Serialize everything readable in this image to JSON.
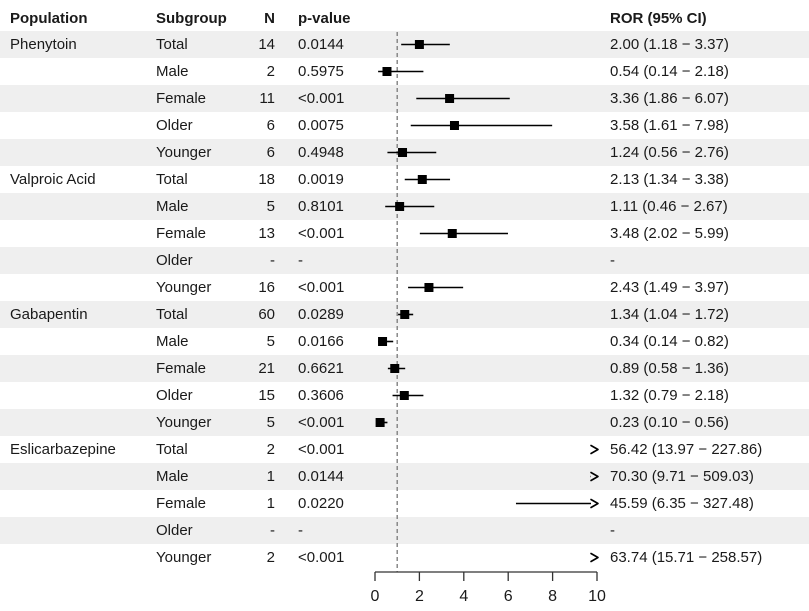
{
  "table": {
    "headers": {
      "population": "Population",
      "subgroup": "Subgroup",
      "n": "N",
      "p_value": "p-value",
      "ror": "ROR (95% CI)"
    }
  },
  "chart_data": {
    "type": "forest",
    "xlim": [
      0,
      10
    ],
    "x_ticks": [
      "0",
      "2",
      "4",
      "6",
      "8",
      "10"
    ],
    "reference_line": 1,
    "legend": "squares are ROR point estimates, horizontal lines are 95% CI, arrows indicate CI extends beyond axis",
    "colors": {
      "marker": "#000000",
      "ci_line": "#000000",
      "reference_line": "#808080",
      "stripe": "#efefef",
      "axis": "#333333"
    },
    "rows": [
      {
        "population": "Phenytoin",
        "subgroup": "Total",
        "n": "14",
        "p_value": "0.0144",
        "ror": 2.0,
        "ci_low": 1.18,
        "ci_high": 3.37,
        "ror_label": "2.00 (1.18 − 3.37)"
      },
      {
        "population": "",
        "subgroup": "Male",
        "n": "2",
        "p_value": "0.5975",
        "ror": 0.54,
        "ci_low": 0.14,
        "ci_high": 2.18,
        "ror_label": "0.54 (0.14 − 2.18)"
      },
      {
        "population": "",
        "subgroup": "Female",
        "n": "11",
        "p_value": "<0.001",
        "ror": 3.36,
        "ci_low": 1.86,
        "ci_high": 6.07,
        "ror_label": "3.36 (1.86 − 6.07)"
      },
      {
        "population": "",
        "subgroup": "Older",
        "n": "6",
        "p_value": "0.0075",
        "ror": 3.58,
        "ci_low": 1.61,
        "ci_high": 7.98,
        "ror_label": "3.58 (1.61 − 7.98)"
      },
      {
        "population": "",
        "subgroup": "Younger",
        "n": "6",
        "p_value": "0.4948",
        "ror": 1.24,
        "ci_low": 0.56,
        "ci_high": 2.76,
        "ror_label": "1.24 (0.56 − 2.76)"
      },
      {
        "population": "Valproic Acid",
        "subgroup": "Total",
        "n": "18",
        "p_value": "0.0019",
        "ror": 2.13,
        "ci_low": 1.34,
        "ci_high": 3.38,
        "ror_label": "2.13 (1.34 − 3.38)"
      },
      {
        "population": "",
        "subgroup": "Male",
        "n": "5",
        "p_value": "0.8101",
        "ror": 1.11,
        "ci_low": 0.46,
        "ci_high": 2.67,
        "ror_label": "1.11 (0.46 − 2.67)"
      },
      {
        "population": "",
        "subgroup": "Female",
        "n": "13",
        "p_value": "<0.001",
        "ror": 3.48,
        "ci_low": 2.02,
        "ci_high": 5.99,
        "ror_label": "3.48 (2.02 − 5.99)"
      },
      {
        "population": "",
        "subgroup": "Older",
        "n": "-",
        "p_value": "-",
        "ror": null,
        "ci_low": null,
        "ci_high": null,
        "ror_label": "-"
      },
      {
        "population": "",
        "subgroup": "Younger",
        "n": "16",
        "p_value": "<0.001",
        "ror": 2.43,
        "ci_low": 1.49,
        "ci_high": 3.97,
        "ror_label": "2.43 (1.49 − 3.97)"
      },
      {
        "population": "Gabapentin",
        "subgroup": "Total",
        "n": "60",
        "p_value": "0.0289",
        "ror": 1.34,
        "ci_low": 1.04,
        "ci_high": 1.72,
        "ror_label": "1.34 (1.04 − 1.72)"
      },
      {
        "population": "",
        "subgroup": "Male",
        "n": "5",
        "p_value": "0.0166",
        "ror": 0.34,
        "ci_low": 0.14,
        "ci_high": 0.82,
        "ror_label": "0.34 (0.14 − 0.82)"
      },
      {
        "population": "",
        "subgroup": "Female",
        "n": "21",
        "p_value": "0.6621",
        "ror": 0.89,
        "ci_low": 0.58,
        "ci_high": 1.36,
        "ror_label": "0.89 (0.58 − 1.36)"
      },
      {
        "population": "",
        "subgroup": "Older",
        "n": "15",
        "p_value": "0.3606",
        "ror": 1.32,
        "ci_low": 0.79,
        "ci_high": 2.18,
        "ror_label": "1.32 (0.79 − 2.18)"
      },
      {
        "population": "",
        "subgroup": "Younger",
        "n": "5",
        "p_value": "<0.001",
        "ror": 0.23,
        "ci_low": 0.1,
        "ci_high": 0.56,
        "ror_label": "0.23 (0.10 − 0.56)"
      },
      {
        "population": "Eslicarbazepine",
        "subgroup": "Total",
        "n": "2",
        "p_value": "<0.001",
        "ror": 56.42,
        "ci_low": 13.97,
        "ci_high": 227.86,
        "ror_label": "56.42 (13.97 − 227.86)"
      },
      {
        "population": "",
        "subgroup": "Male",
        "n": "1",
        "p_value": "0.0144",
        "ror": 70.3,
        "ci_low": 9.71,
        "ci_high": 509.03,
        "ror_label": "70.30 (9.71 − 509.03)"
      },
      {
        "population": "",
        "subgroup": "Female",
        "n": "1",
        "p_value": "0.0220",
        "ror": 45.59,
        "ci_low": 6.35,
        "ci_high": 327.48,
        "ror_label": "45.59 (6.35 − 327.48)"
      },
      {
        "population": "",
        "subgroup": "Older",
        "n": "-",
        "p_value": "-",
        "ror": null,
        "ci_low": null,
        "ci_high": null,
        "ror_label": "-"
      },
      {
        "population": "",
        "subgroup": "Younger",
        "n": "2",
        "p_value": "<0.001",
        "ror": 63.74,
        "ci_low": 15.71,
        "ci_high": 258.57,
        "ror_label": "63.74 (15.71 − 258.57)"
      }
    ]
  }
}
